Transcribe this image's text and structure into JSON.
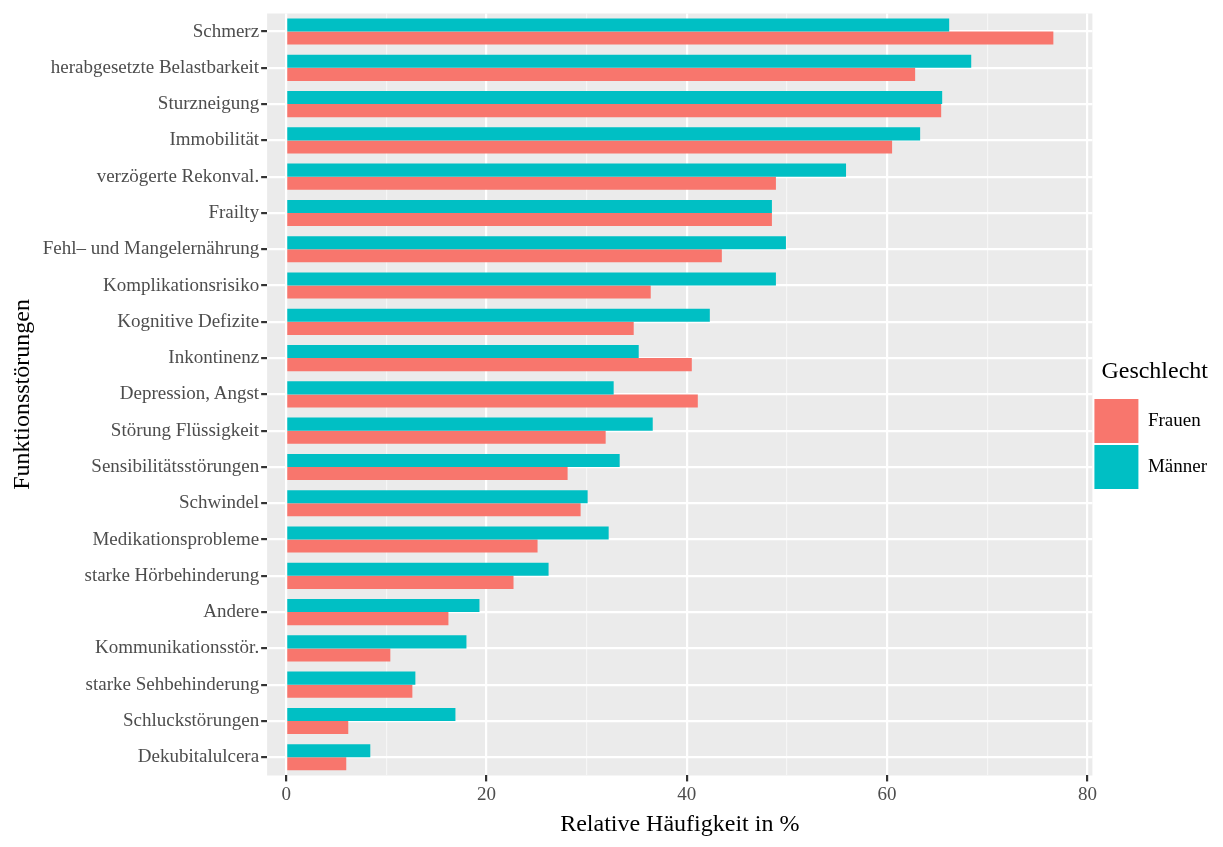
{
  "chart_data": {
    "type": "bar",
    "orientation": "horizontal",
    "xlabel": "Relative Häufigkeit in %",
    "ylabel": "Funktionsstörungen",
    "legend_title": "Geschlecht",
    "legend": "right",
    "grid": true,
    "categories": [
      "Schmerz",
      "herabgesetzte Belastbarkeit",
      "Sturzneigung",
      "Immobilität",
      "verzögerte Rekonval.",
      "Frailty",
      "Fehl– und Mangelernährung",
      "Komplikationsrisiko",
      "Kognitive Defizite",
      "Inkontinenz",
      "Depression, Angst",
      "Störung Flüssigkeit",
      "Sensibilitätsstörungen",
      "Schwindel",
      "Medikationsprobleme",
      "starke Hörbehinderung",
      "Andere",
      "Kommunikationsstör.",
      "starke Sehbehinderung",
      "Schluckstörungen",
      "Dekubitalulcera"
    ],
    "series": [
      {
        "name": "Frauen",
        "color": "#f8766d",
        "values": [
          76.6,
          62.8,
          65.4,
          60.5,
          48.9,
          48.5,
          43.5,
          36.4,
          34.7,
          40.5,
          41.1,
          31.9,
          28.1,
          29.4,
          25.1,
          22.7,
          16.2,
          10.4,
          12.6,
          6.2,
          6.0
        ]
      },
      {
        "name": "Männer",
        "color": "#00bfc4",
        "values": [
          66.2,
          68.4,
          65.5,
          63.3,
          55.9,
          48.5,
          49.9,
          48.9,
          42.3,
          35.2,
          32.7,
          36.6,
          33.3,
          30.1,
          32.2,
          26.2,
          19.3,
          18.0,
          12.9,
          16.9,
          8.4
        ]
      }
    ],
    "xlim": [
      -1.9,
      80.5
    ],
    "xticks": [
      0,
      {
        "value": 10,
        "label": null
      },
      20,
      {
        "value": 30,
        "label": null
      },
      40,
      {
        "value": 50,
        "label": null
      },
      60,
      {
        "value": 70,
        "label": null
      },
      80
    ]
  }
}
